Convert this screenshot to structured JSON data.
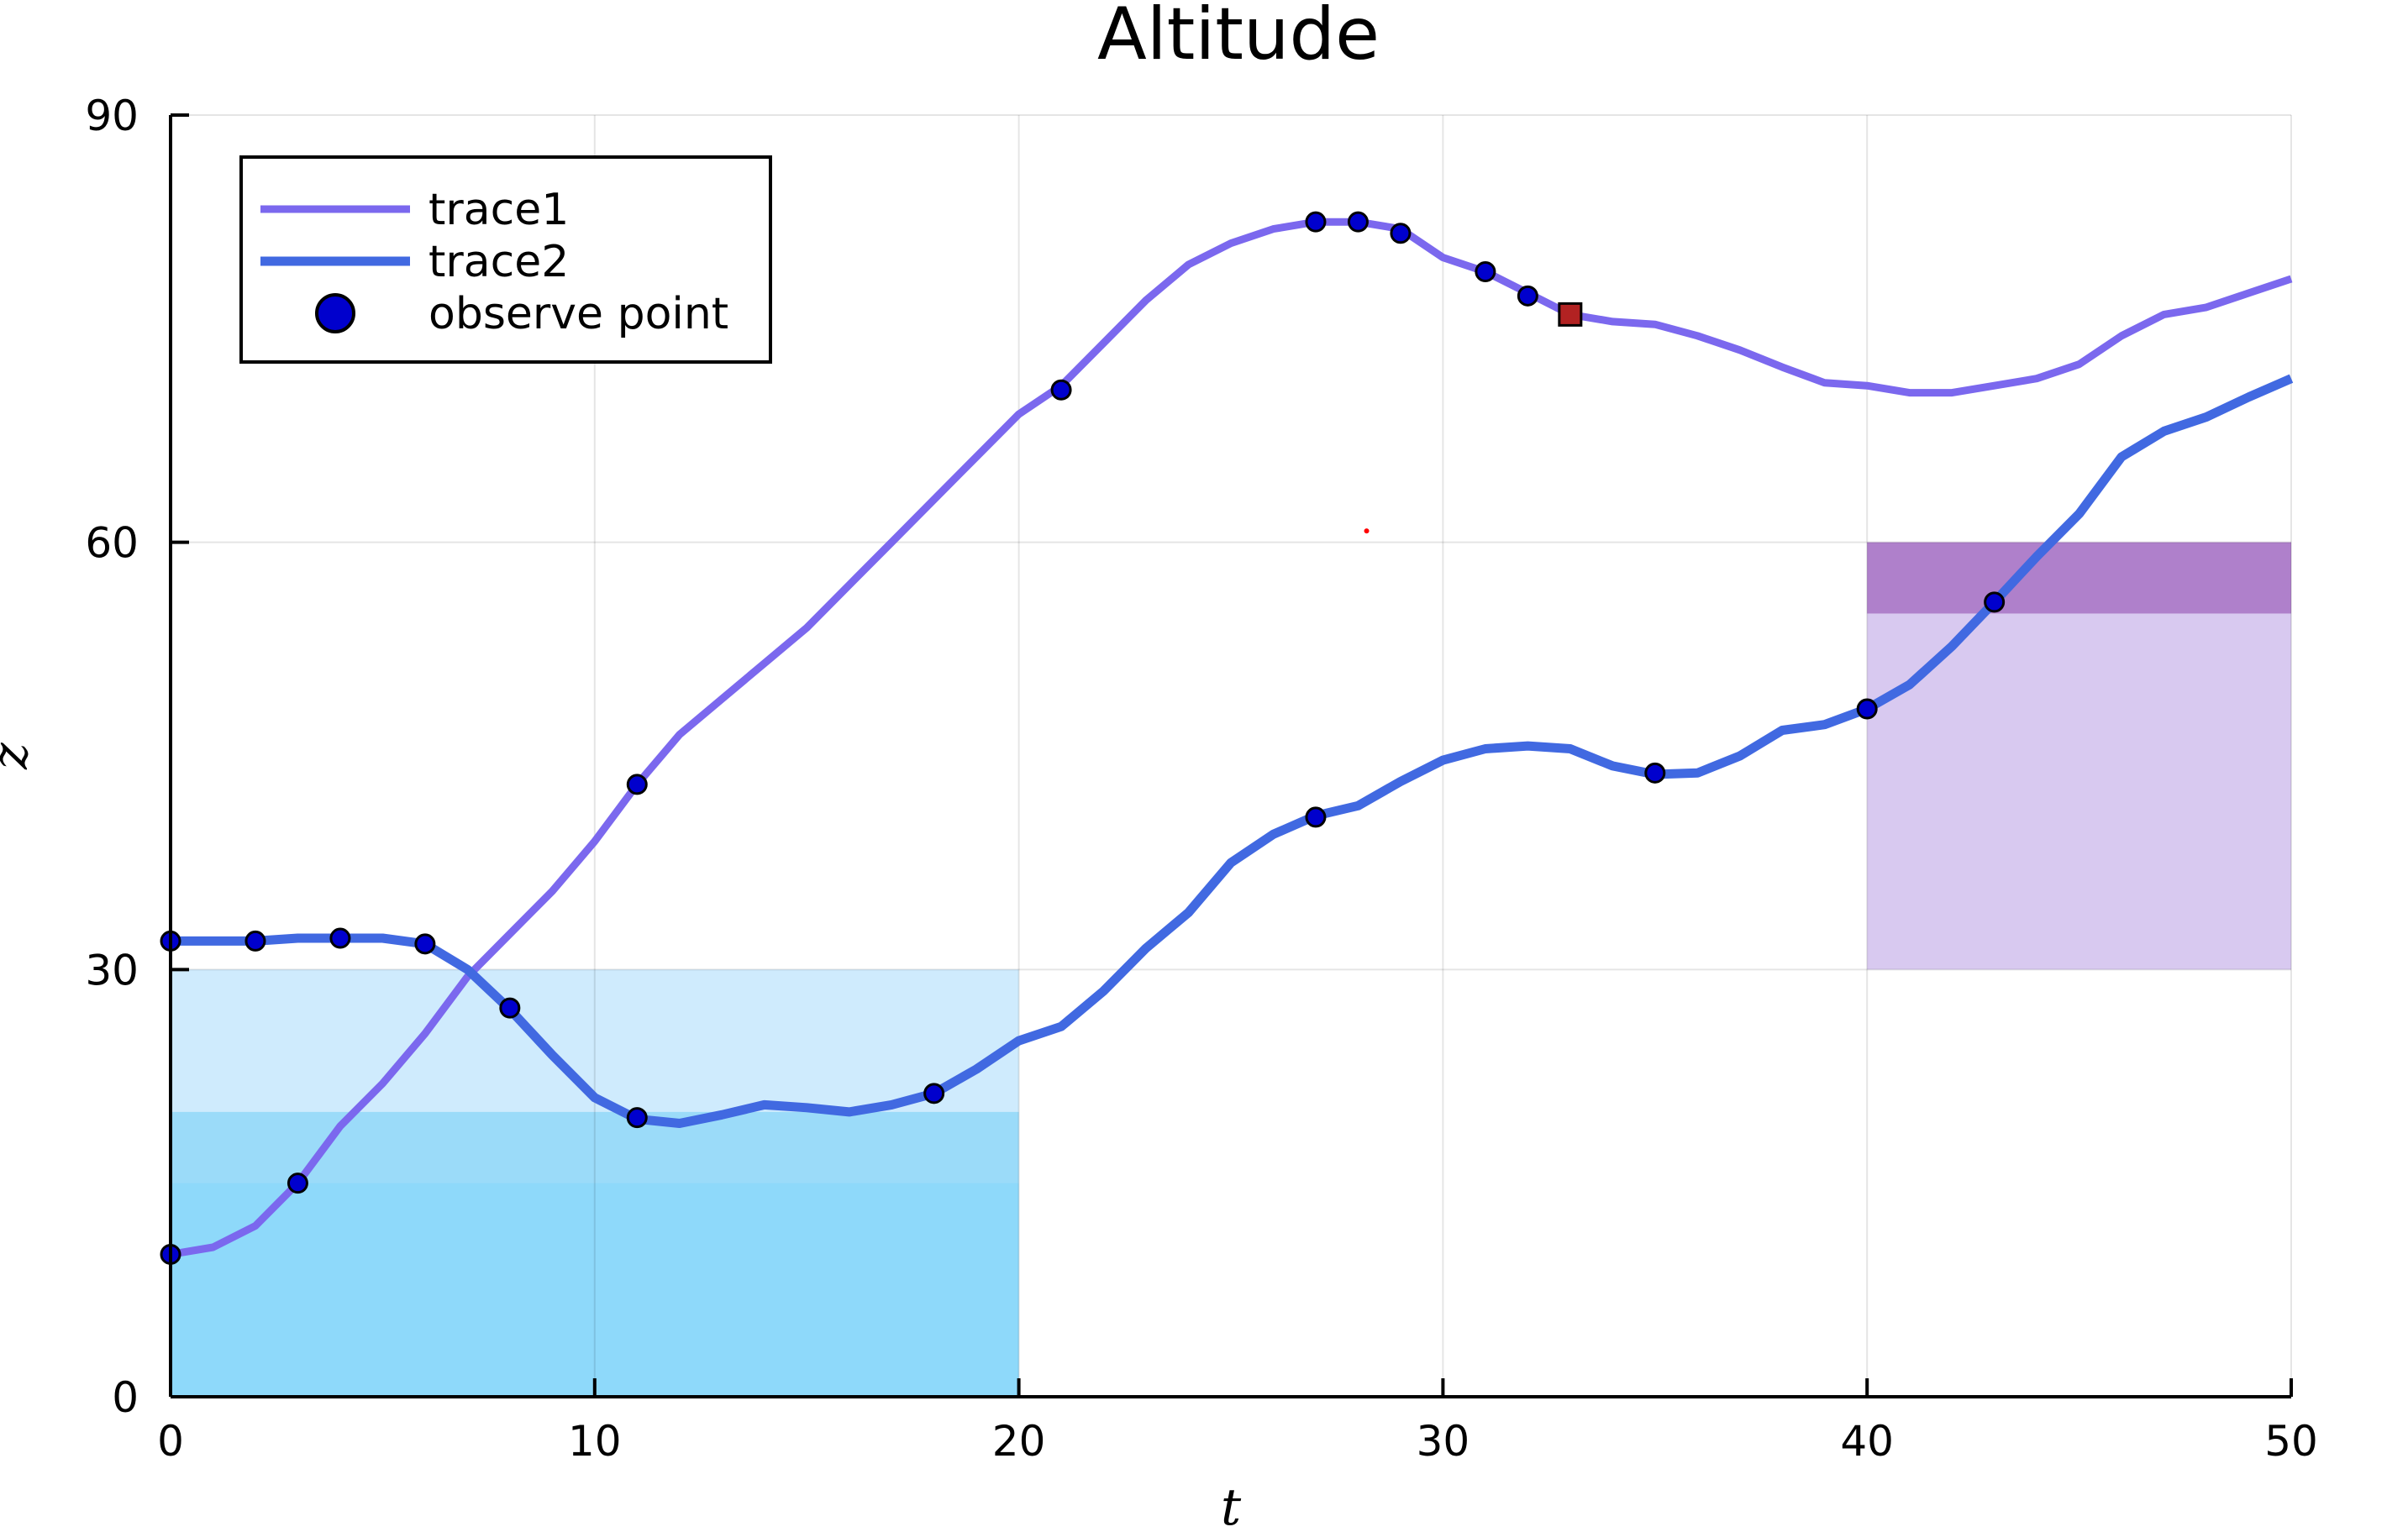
{
  "chart_data": {
    "type": "line",
    "title": "Altitude",
    "xlabel": "t",
    "ylabel": "z",
    "xlim": [
      0,
      50
    ],
    "ylim": [
      0,
      90
    ],
    "xticks": [
      0,
      10,
      20,
      30,
      40,
      50
    ],
    "yticks": [
      0,
      30,
      60,
      90
    ],
    "grid": true,
    "legend_position": "top-left",
    "regions": [
      {
        "x": [
          0,
          20
        ],
        "y": [
          0,
          30
        ],
        "color": "#87CEFA",
        "opacity": 0.4
      },
      {
        "x": [
          0,
          20
        ],
        "y": [
          0,
          20
        ],
        "color": "#5AC8F5",
        "opacity": 0.45
      },
      {
        "x": [
          0,
          20
        ],
        "y": [
          0,
          15
        ],
        "color": "#7FD6FA",
        "opacity": 0.45
      },
      {
        "x": [
          40,
          50
        ],
        "y": [
          30,
          60
        ],
        "color": "#B89CE3",
        "opacity": 0.55
      },
      {
        "x": [
          40,
          50
        ],
        "y": [
          55,
          60
        ],
        "color": "#8E44AD",
        "opacity": 0.55
      }
    ],
    "series": [
      {
        "name": "trace1",
        "color": "#7B68EE",
        "x": [
          0,
          1,
          2,
          3,
          4,
          5,
          6,
          7,
          8,
          9,
          10,
          11,
          12,
          13,
          14,
          15,
          16,
          17,
          18,
          19,
          20,
          21,
          22,
          23,
          24,
          25,
          26,
          27,
          28,
          29,
          30,
          31,
          32,
          33,
          34,
          35,
          36,
          37,
          38,
          39,
          40,
          41,
          42,
          43,
          44,
          45,
          46,
          47,
          48,
          49,
          50
        ],
        "y": [
          10,
          10.5,
          12,
          15,
          19,
          22,
          25.5,
          29.5,
          32.5,
          35.5,
          39,
          43,
          46.5,
          49,
          51.5,
          54,
          57,
          60,
          63,
          66,
          69,
          71,
          74,
          77,
          79.5,
          81,
          82,
          82.5,
          82.5,
          82,
          80,
          79,
          77.5,
          76,
          75.5,
          75.3,
          74.5,
          73.5,
          72.3,
          71.2,
          71,
          70.5,
          70.5,
          71,
          71.5,
          72.5,
          74.5,
          76,
          76.5,
          77.5,
          78.5
        ]
      },
      {
        "name": "trace2",
        "color": "#4169E1",
        "x": [
          0,
          1,
          2,
          3,
          4,
          5,
          6,
          7,
          8,
          9,
          10,
          11,
          12,
          13,
          14,
          15,
          16,
          17,
          18,
          19,
          20,
          21,
          22,
          23,
          24,
          25,
          26,
          27,
          28,
          29,
          30,
          31,
          32,
          33,
          34,
          35,
          36,
          37,
          38,
          39,
          40,
          41,
          42,
          43,
          44,
          45,
          46,
          47,
          48,
          49,
          50
        ],
        "y": [
          32,
          32,
          32,
          32.2,
          32.2,
          32.2,
          31.8,
          30,
          27.2,
          24,
          21,
          19.5,
          19.2,
          19.8,
          20.5,
          20.3,
          20,
          20.5,
          21.3,
          23,
          25,
          26,
          28.5,
          31.5,
          34,
          37.5,
          39.5,
          40.8,
          41.5,
          43.2,
          44.7,
          45.5,
          45.7,
          45.5,
          44.3,
          43.7,
          43.8,
          45,
          46.8,
          47.2,
          48.3,
          50,
          52.7,
          55.8,
          59,
          62,
          66,
          67.8,
          68.8,
          70.2,
          71.5
        ]
      }
    ],
    "observe_points": {
      "name": "observe point",
      "color": "#0000CD",
      "points": [
        {
          "x": 0,
          "y": 10
        },
        {
          "x": 3,
          "y": 15
        },
        {
          "x": 11,
          "y": 43
        },
        {
          "x": 21,
          "y": 70.7
        },
        {
          "x": 27,
          "y": 82.5
        },
        {
          "x": 28,
          "y": 82.5
        },
        {
          "x": 29,
          "y": 81.7
        },
        {
          "x": 31,
          "y": 79
        },
        {
          "x": 32,
          "y": 77.3
        },
        {
          "x": 0,
          "y": 32
        },
        {
          "x": 2,
          "y": 32
        },
        {
          "x": 4,
          "y": 32.2
        },
        {
          "x": 6,
          "y": 31.8
        },
        {
          "x": 8,
          "y": 27.3
        },
        {
          "x": 11,
          "y": 19.6
        },
        {
          "x": 18,
          "y": 21.3
        },
        {
          "x": 27,
          "y": 40.7
        },
        {
          "x": 35,
          "y": 43.8
        },
        {
          "x": 40,
          "y": 48.3
        },
        {
          "x": 43,
          "y": 55.8
        }
      ]
    },
    "marker_square": {
      "x": 33,
      "y": 76,
      "color": "#B22222"
    },
    "marker_dot": {
      "x": 28.2,
      "y": 60.8,
      "color": "#FF0000"
    }
  }
}
